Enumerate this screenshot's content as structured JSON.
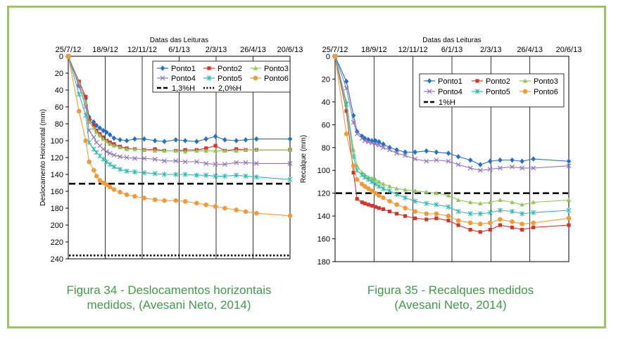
{
  "colors": {
    "frame": "#9cc36b",
    "caption": "#3e9b47",
    "Ponto1": "#1f6fcf",
    "Ponto2": "#d6342b",
    "Ponto3": "#8fc856",
    "Ponto4": "#9273c0",
    "Ponto5": "#2bb9b0",
    "Ponto6": "#f29a35"
  },
  "captions": {
    "fig34_line1": "Figura 34 - Deslocamentos horizontais",
    "fig34_line2": "medidos, (Avesani Neto, 2014)",
    "fig35_line1": "Figura 35 - Recalques medidos",
    "fig35_line2": "(Avesani Neto, 2014)"
  },
  "chart_data": [
    {
      "type": "line",
      "xlabel": "Datas das Leituras",
      "ylabel": "Deslocamento Horizontal (mm)",
      "x_ticks": [
        "25/7/12",
        "18/9/12",
        "12/11/12",
        "6/1/13",
        "2/3/13",
        "26/4/13",
        "20/6/13"
      ],
      "y_ticks": [
        0,
        20,
        40,
        60,
        80,
        100,
        120,
        140,
        160,
        180,
        200,
        220,
        240
      ],
      "ylim": [
        0,
        240
      ],
      "y_inverted": true,
      "grid": "vertical",
      "legend": "top-right",
      "series": [
        {
          "name": "Ponto1",
          "marker": "diamond",
          "x": [
            "2012-07-25",
            "2012-08-10",
            "2012-08-20",
            "2012-08-25",
            "2012-09-01",
            "2012-09-05",
            "2012-09-10",
            "2012-09-15",
            "2012-09-20",
            "2012-09-25",
            "2012-10-01",
            "2012-10-10",
            "2012-10-20",
            "2012-11-01",
            "2012-11-15",
            "2012-12-01",
            "2012-12-15",
            "2013-01-01",
            "2013-01-15",
            "2013-02-01",
            "2013-02-15",
            "2013-03-01",
            "2013-03-15",
            "2013-04-01",
            "2013-04-15",
            "2013-05-01",
            "2013-06-20"
          ],
          "y": [
            0,
            35,
            50,
            72,
            78,
            82,
            85,
            88,
            90,
            93,
            97,
            99,
            100,
            98,
            98,
            100,
            101,
            99,
            100,
            101,
            98,
            95,
            99,
            100,
            99,
            98,
            98
          ]
        },
        {
          "name": "Ponto2",
          "marker": "square",
          "x": [
            "2012-07-25",
            "2012-08-10",
            "2012-08-20",
            "2012-08-25",
            "2012-09-01",
            "2012-09-05",
            "2012-09-10",
            "2012-09-15",
            "2012-09-20",
            "2012-09-25",
            "2012-10-01",
            "2012-10-10",
            "2012-10-20",
            "2012-11-01",
            "2012-11-15",
            "2012-12-01",
            "2012-12-15",
            "2013-01-01",
            "2013-01-15",
            "2013-02-01",
            "2013-02-15",
            "2013-03-01",
            "2013-03-15",
            "2013-04-01",
            "2013-04-15",
            "2013-05-01",
            "2013-06-20"
          ],
          "y": [
            0,
            30,
            48,
            75,
            82,
            88,
            92,
            96,
            100,
            102,
            104,
            107,
            109,
            110,
            111,
            110,
            112,
            112,
            111,
            111,
            109,
            106,
            112,
            110,
            111,
            111,
            111
          ]
        },
        {
          "name": "Ponto3",
          "marker": "triangle",
          "x": [
            "2012-07-25",
            "2012-08-10",
            "2012-08-20",
            "2012-08-25",
            "2012-09-01",
            "2012-09-05",
            "2012-09-10",
            "2012-09-15",
            "2012-09-20",
            "2012-09-25",
            "2012-10-01",
            "2012-10-10",
            "2012-10-20",
            "2012-11-01",
            "2012-11-15",
            "2012-12-01",
            "2012-12-15",
            "2013-01-01",
            "2013-01-15",
            "2013-02-01",
            "2013-02-15",
            "2013-03-01",
            "2013-03-15",
            "2013-04-01",
            "2013-04-15",
            "2013-05-01",
            "2013-06-20"
          ],
          "y": [
            0,
            32,
            55,
            78,
            85,
            90,
            94,
            98,
            101,
            104,
            106,
            108,
            110,
            110,
            111,
            112,
            112,
            112,
            113,
            112,
            112,
            112,
            112,
            112,
            111,
            111,
            111
          ]
        },
        {
          "name": "Ponto4",
          "marker": "x",
          "x": [
            "2012-07-25",
            "2012-08-10",
            "2012-08-20",
            "2012-08-25",
            "2012-09-01",
            "2012-09-05",
            "2012-09-10",
            "2012-09-15",
            "2012-09-20",
            "2012-09-25",
            "2012-10-01",
            "2012-10-10",
            "2012-10-20",
            "2012-11-01",
            "2012-11-15",
            "2012-12-01",
            "2012-12-15",
            "2013-01-01",
            "2013-01-15",
            "2013-02-01",
            "2013-02-15",
            "2013-03-01",
            "2013-03-15",
            "2013-04-01",
            "2013-04-15",
            "2013-05-01",
            "2013-06-20"
          ],
          "y": [
            0,
            35,
            60,
            88,
            96,
            102,
            106,
            110,
            113,
            115,
            117,
            119,
            120,
            121,
            121,
            122,
            124,
            124,
            125,
            125,
            127,
            128,
            128,
            126,
            126,
            127,
            127
          ]
        },
        {
          "name": "Ponto5",
          "marker": "star",
          "x": [
            "2012-07-25",
            "2012-08-10",
            "2012-08-20",
            "2012-08-25",
            "2012-09-01",
            "2012-09-05",
            "2012-09-10",
            "2012-09-15",
            "2012-09-20",
            "2012-09-25",
            "2012-10-01",
            "2012-10-10",
            "2012-10-20",
            "2012-11-01",
            "2012-11-15",
            "2012-12-01",
            "2012-12-15",
            "2013-01-01",
            "2013-01-15",
            "2013-02-01",
            "2013-02-15",
            "2013-03-01",
            "2013-03-15",
            "2013-04-01",
            "2013-04-15",
            "2013-05-01",
            "2013-06-20"
          ],
          "y": [
            0,
            45,
            70,
            102,
            110,
            114,
            118,
            122,
            125,
            128,
            131,
            134,
            136,
            137,
            138,
            139,
            140,
            140,
            140,
            141,
            141,
            142,
            142,
            141,
            142,
            143,
            146
          ]
        },
        {
          "name": "Ponto6",
          "marker": "circle",
          "x": [
            "2012-07-25",
            "2012-08-10",
            "2012-08-20",
            "2012-08-25",
            "2012-09-01",
            "2012-09-05",
            "2012-09-10",
            "2012-09-15",
            "2012-09-20",
            "2012-09-25",
            "2012-10-01",
            "2012-10-10",
            "2012-10-20",
            "2012-11-01",
            "2012-11-15",
            "2012-12-01",
            "2012-12-15",
            "2013-01-01",
            "2013-01-15",
            "2013-02-01",
            "2013-02-15",
            "2013-03-01",
            "2013-03-15",
            "2013-04-01",
            "2013-04-15",
            "2013-05-01",
            "2013-06-20"
          ],
          "y": [
            0,
            65,
            100,
            125,
            135,
            142,
            147,
            150,
            152,
            155,
            158,
            161,
            164,
            166,
            168,
            170,
            171,
            171,
            172,
            174,
            176,
            178,
            180,
            182,
            184,
            186,
            189
          ]
        }
      ],
      "reference_lines": [
        {
          "label": "1,3%H",
          "y": 151,
          "style": "dashed"
        },
        {
          "label": "2,0%H",
          "y": 236,
          "style": "dotted"
        }
      ]
    },
    {
      "type": "line",
      "xlabel": "Datas das Leituras",
      "ylabel": "Recalque (mm)",
      "x_ticks": [
        "25/7/12",
        "18/9/12",
        "12/11/12",
        "6/1/13",
        "2/3/13",
        "26/4/13",
        "20/6/13"
      ],
      "y_ticks": [
        0,
        20,
        40,
        60,
        80,
        100,
        120,
        140,
        160,
        180
      ],
      "ylim": [
        0,
        180
      ],
      "y_inverted": true,
      "grid": "vertical",
      "legend": "top-right",
      "series": [
        {
          "name": "Ponto1",
          "marker": "diamond",
          "x": [
            "2012-07-25",
            "2012-08-10",
            "2012-08-20",
            "2012-08-25",
            "2012-09-01",
            "2012-09-05",
            "2012-09-10",
            "2012-09-15",
            "2012-09-20",
            "2012-09-25",
            "2012-10-01",
            "2012-10-10",
            "2012-10-20",
            "2012-11-01",
            "2012-11-15",
            "2012-12-01",
            "2012-12-15",
            "2013-01-01",
            "2013-01-15",
            "2013-02-01",
            "2013-02-15",
            "2013-03-01",
            "2013-03-15",
            "2013-04-01",
            "2013-04-15",
            "2013-05-01",
            "2013-06-20"
          ],
          "y": [
            0,
            22,
            52,
            66,
            70,
            72,
            73,
            74,
            74,
            75,
            77,
            80,
            82,
            84,
            84,
            83,
            84,
            85,
            88,
            91,
            95,
            92,
            91,
            91,
            92,
            90,
            92
          ]
        },
        {
          "name": "Ponto2",
          "marker": "square",
          "x": [
            "2012-07-25",
            "2012-08-10",
            "2012-08-20",
            "2012-08-25",
            "2012-09-01",
            "2012-09-05",
            "2012-09-10",
            "2012-09-15",
            "2012-09-20",
            "2012-09-25",
            "2012-10-01",
            "2012-10-10",
            "2012-10-20",
            "2012-11-01",
            "2012-11-15",
            "2012-12-01",
            "2012-12-15",
            "2013-01-01",
            "2013-01-15",
            "2013-02-01",
            "2013-02-15",
            "2013-03-01",
            "2013-03-15",
            "2013-04-01",
            "2013-04-15",
            "2013-05-01",
            "2013-06-20"
          ],
          "y": [
            0,
            48,
            102,
            125,
            128,
            129,
            130,
            131,
            132,
            133,
            134,
            136,
            138,
            140,
            142,
            143,
            142,
            144,
            148,
            152,
            154,
            152,
            148,
            150,
            152,
            150,
            148
          ]
        },
        {
          "name": "Ponto3",
          "marker": "triangle",
          "x": [
            "2012-07-25",
            "2012-08-10",
            "2012-08-20",
            "2012-08-25",
            "2012-09-01",
            "2012-09-05",
            "2012-09-10",
            "2012-09-15",
            "2012-09-20",
            "2012-09-25",
            "2012-10-01",
            "2012-10-10",
            "2012-10-20",
            "2012-11-01",
            "2012-11-15",
            "2012-12-01",
            "2012-12-15",
            "2013-01-01",
            "2013-01-15",
            "2013-02-01",
            "2013-02-15",
            "2013-03-01",
            "2013-03-15",
            "2013-04-01",
            "2013-04-15",
            "2013-05-01",
            "2013-06-20"
          ],
          "y": [
            0,
            40,
            82,
            96,
            102,
            104,
            106,
            107,
            108,
            110,
            112,
            114,
            116,
            117,
            118,
            119,
            120,
            122,
            126,
            128,
            129,
            128,
            126,
            128,
            130,
            128,
            126
          ]
        },
        {
          "name": "Ponto4",
          "marker": "x",
          "x": [
            "2012-07-25",
            "2012-08-10",
            "2012-08-20",
            "2012-08-25",
            "2012-09-01",
            "2012-09-05",
            "2012-09-10",
            "2012-09-15",
            "2012-09-20",
            "2012-09-25",
            "2012-10-01",
            "2012-10-10",
            "2012-10-20",
            "2012-11-01",
            "2012-11-15",
            "2012-12-01",
            "2012-12-15",
            "2013-01-01",
            "2013-01-15",
            "2013-02-01",
            "2013-02-15",
            "2013-03-01",
            "2013-03-15",
            "2013-04-01",
            "2013-04-15",
            "2013-05-01",
            "2013-06-20"
          ],
          "y": [
            0,
            28,
            58,
            68,
            72,
            74,
            75,
            76,
            77,
            78,
            80,
            82,
            85,
            87,
            90,
            92,
            91,
            92,
            95,
            98,
            100,
            99,
            98,
            97,
            98,
            98,
            96
          ]
        },
        {
          "name": "Ponto5",
          "marker": "star",
          "x": [
            "2012-07-25",
            "2012-08-10",
            "2012-08-20",
            "2012-08-25",
            "2012-09-01",
            "2012-09-05",
            "2012-09-10",
            "2012-09-15",
            "2012-09-20",
            "2012-09-25",
            "2012-10-01",
            "2012-10-10",
            "2012-10-20",
            "2012-11-01",
            "2012-11-15",
            "2012-12-01",
            "2012-12-15",
            "2013-01-01",
            "2013-01-15",
            "2013-02-01",
            "2013-02-15",
            "2013-03-01",
            "2013-03-15",
            "2013-04-01",
            "2013-04-15",
            "2013-05-01",
            "2013-06-20"
          ],
          "y": [
            0,
            42,
            88,
            100,
            104,
            106,
            108,
            110,
            112,
            114,
            116,
            118,
            121,
            124,
            127,
            129,
            130,
            132,
            136,
            138,
            138,
            137,
            135,
            136,
            138,
            137,
            135
          ]
        },
        {
          "name": "Ponto6",
          "marker": "circle",
          "x": [
            "2012-07-25",
            "2012-08-10",
            "2012-08-20",
            "2012-08-25",
            "2012-09-01",
            "2012-09-05",
            "2012-09-10",
            "2012-09-15",
            "2012-09-20",
            "2012-09-25",
            "2012-10-01",
            "2012-10-10",
            "2012-10-20",
            "2012-11-01",
            "2012-11-15",
            "2012-12-01",
            "2012-12-15",
            "2013-01-01",
            "2013-01-15",
            "2013-02-01",
            "2013-02-15",
            "2013-03-01",
            "2013-03-15",
            "2013-04-01",
            "2013-04-15",
            "2013-05-01",
            "2013-06-20"
          ],
          "y": [
            0,
            68,
            96,
            108,
            112,
            114,
            116,
            118,
            120,
            122,
            124,
            127,
            130,
            133,
            136,
            138,
            138,
            140,
            144,
            146,
            147,
            146,
            143,
            145,
            147,
            146,
            142
          ]
        }
      ],
      "reference_lines": [
        {
          "label": "1%H",
          "y": 120,
          "style": "dashed"
        }
      ]
    }
  ]
}
